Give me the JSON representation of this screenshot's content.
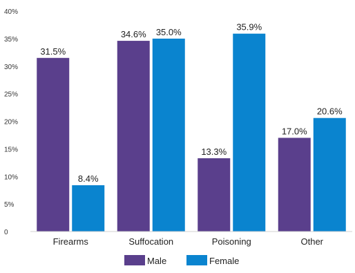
{
  "chart_data": {
    "type": "bar",
    "categories": [
      "Firearms",
      "Suffocation",
      "Poisoning",
      "Other"
    ],
    "series": [
      {
        "name": "Male",
        "values": [
          31.5,
          34.6,
          13.3,
          17.0
        ],
        "labels": [
          "31.5%",
          "34.6%",
          "13.3%",
          "17.0%"
        ],
        "color": "#5a3f8c"
      },
      {
        "name": "Female",
        "values": [
          8.4,
          35.0,
          35.9,
          20.6
        ],
        "labels": [
          "8.4%",
          "35.0%",
          "35.9%",
          "20.6%"
        ],
        "color": "#0a84cf"
      }
    ],
    "ylim": [
      0,
      40
    ],
    "yticks": [
      0,
      5,
      10,
      15,
      20,
      25,
      30,
      35,
      40
    ],
    "ytick_labels": [
      "0",
      "5%",
      "10%",
      "15%",
      "20%",
      "25%",
      "30%",
      "35%",
      "40%"
    ],
    "grid": false,
    "legend_position": "bottom-center",
    "title": "",
    "xlabel": "",
    "ylabel": ""
  }
}
